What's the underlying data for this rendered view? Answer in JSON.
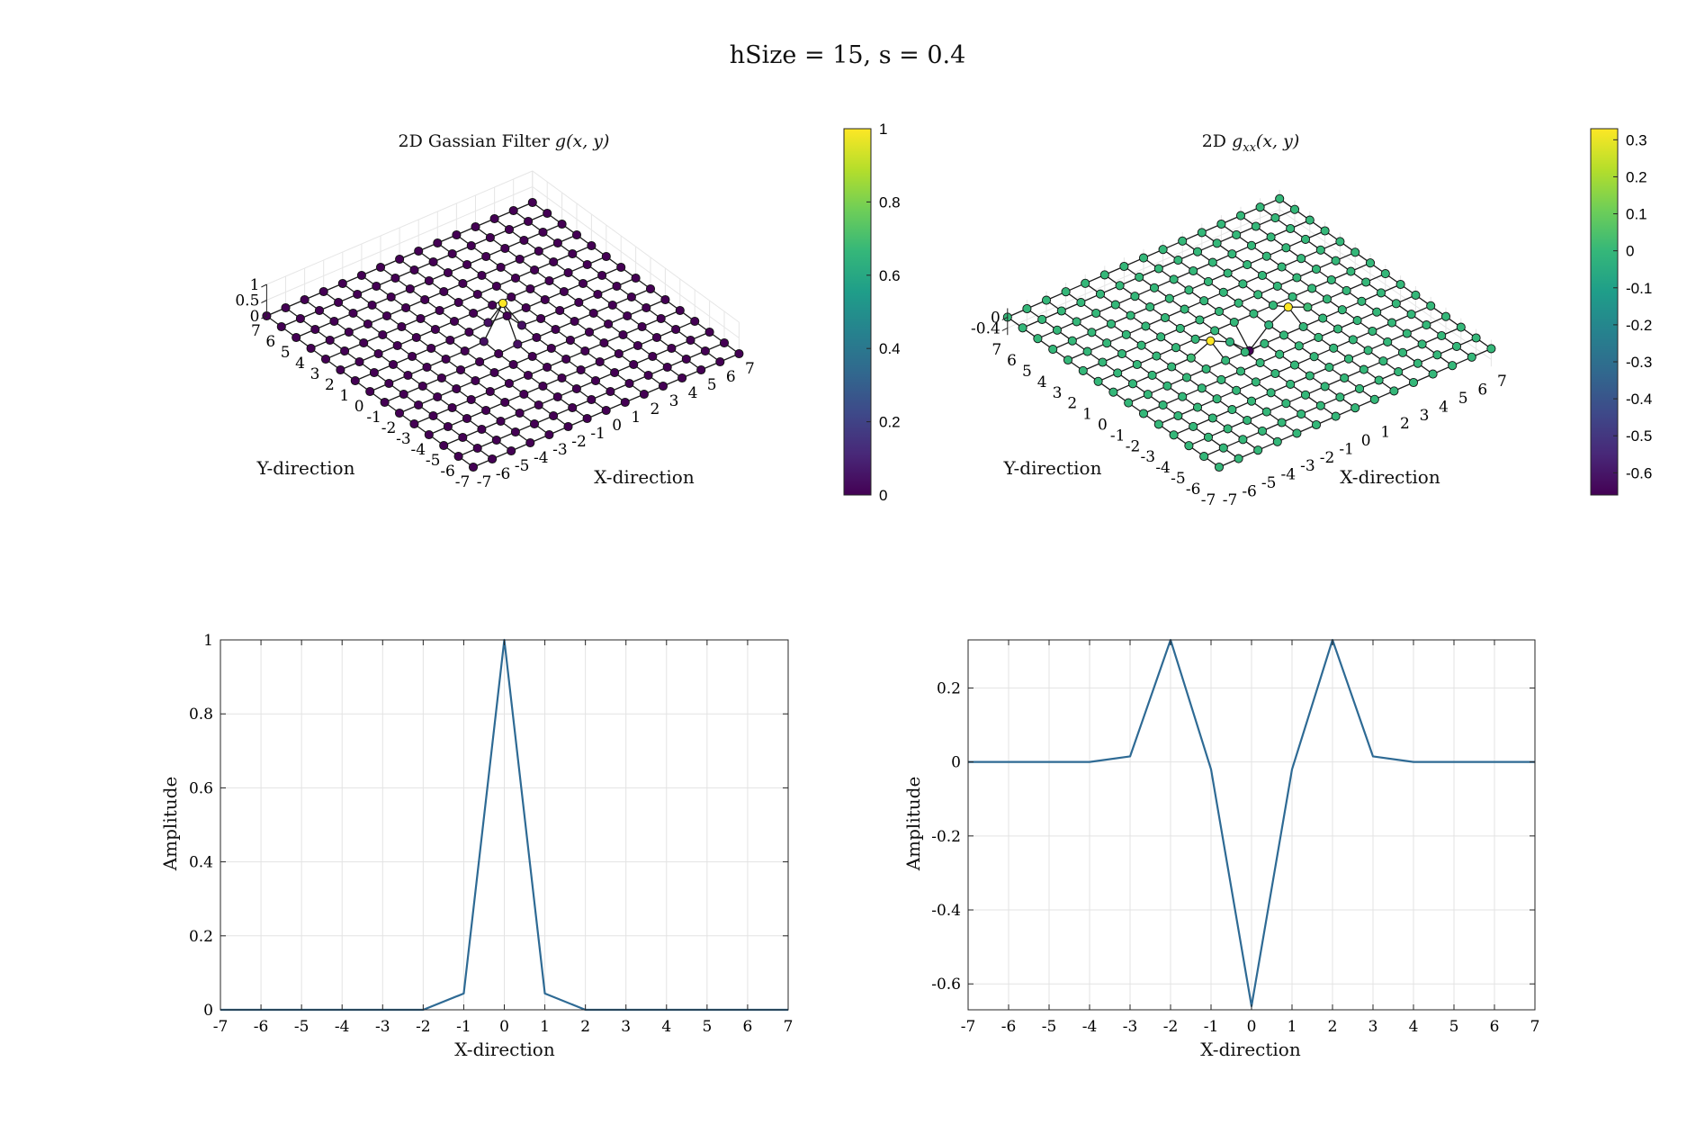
{
  "figure": {
    "suptitle": "hSize = 15, s = 0.4"
  },
  "chart_data": [
    {
      "type": "surface",
      "title": "2D Gassian Filter g(x,y)",
      "title_plain": "2D Gassian Filter ",
      "title_math": "g(x, y)",
      "xlabel": "X-direction",
      "ylabel": "Y-direction",
      "x": [
        -7,
        -6,
        -5,
        -4,
        -3,
        -2,
        -1,
        0,
        1,
        2,
        3,
        4,
        5,
        6,
        7
      ],
      "y": [
        -7,
        -6,
        -5,
        -4,
        -3,
        -2,
        -1,
        0,
        1,
        2,
        3,
        4,
        5,
        6,
        7
      ],
      "x_ticks": [
        "-7",
        "-6",
        "-5",
        "-4",
        "-3",
        "-2",
        "-1",
        "0",
        "1",
        "2",
        "3",
        "4",
        "5",
        "6",
        "7"
      ],
      "y_ticks": [
        "-7",
        "-6",
        "-5",
        "-4",
        "-3",
        "-2",
        "-1",
        "0",
        "1",
        "2",
        "3",
        "4",
        "5",
        "6",
        "7"
      ],
      "z_ticks": [
        "0",
        "0.5",
        "1"
      ],
      "zlim": [
        0,
        1
      ],
      "nonzero_z": [
        {
          "x": 0,
          "y": 0,
          "z": 1.0
        },
        {
          "x": 1,
          "y": 0,
          "z": 0.044
        },
        {
          "x": -1,
          "y": 0,
          "z": 0.044
        },
        {
          "x": 0,
          "y": 1,
          "z": 0.044
        },
        {
          "x": 0,
          "y": -1,
          "z": 0.044
        }
      ],
      "colorbar": {
        "ticks": [
          "0",
          "0.2",
          "0.4",
          "0.6",
          "0.8",
          "1"
        ],
        "min": 0,
        "max": 1
      }
    },
    {
      "type": "surface",
      "title": "2D g_xx(x,y)",
      "title_plain": "2D ",
      "title_math": "g",
      "title_sub": "xx",
      "title_args": "(x, y)",
      "xlabel": "X-direction",
      "ylabel": "Y-direction",
      "x": [
        -7,
        -6,
        -5,
        -4,
        -3,
        -2,
        -1,
        0,
        1,
        2,
        3,
        4,
        5,
        6,
        7
      ],
      "y": [
        -7,
        -6,
        -5,
        -4,
        -3,
        -2,
        -1,
        0,
        1,
        2,
        3,
        4,
        5,
        6,
        7
      ],
      "x_ticks": [
        "-7",
        "-6",
        "-5",
        "-4",
        "-3",
        "-2",
        "-1",
        "0",
        "1",
        "2",
        "3",
        "4",
        "5",
        "6",
        "7"
      ],
      "y_ticks": [
        "-7",
        "-6",
        "-5",
        "-4",
        "-3",
        "-2",
        "-1",
        "0",
        "1",
        "2",
        "3",
        "4",
        "5",
        "6",
        "7"
      ],
      "z_ticks": [
        "-0.4",
        "0"
      ],
      "zlim": [
        -0.66,
        0.33
      ],
      "nonzero_z": [
        {
          "x": 0,
          "y": 0,
          "z": -0.66
        },
        {
          "x": -2,
          "y": 0,
          "z": 0.33
        },
        {
          "x": 2,
          "y": 0,
          "z": 0.33
        },
        {
          "x": -1,
          "y": 0,
          "z": -0.02
        },
        {
          "x": 1,
          "y": 0,
          "z": -0.02
        },
        {
          "x": -3,
          "y": 0,
          "z": 0.015
        },
        {
          "x": 3,
          "y": 0,
          "z": 0.015
        }
      ],
      "colorbar": {
        "ticks": [
          "-0.6",
          "-0.5",
          "-0.4",
          "-0.3",
          "-0.2",
          "-0.1",
          "0",
          "0.1",
          "0.2",
          "0.3"
        ],
        "min": -0.66,
        "max": 0.33
      }
    },
    {
      "type": "line",
      "title": "",
      "xlabel": "X-direction",
      "ylabel": "Amplitude",
      "x": [
        -7,
        -6,
        -5,
        -4,
        -3,
        -2,
        -1,
        0,
        1,
        2,
        3,
        4,
        5,
        6,
        7
      ],
      "y": [
        0,
        0,
        0,
        0,
        0,
        0,
        0.044,
        1,
        0.044,
        0,
        0,
        0,
        0,
        0,
        0
      ],
      "xlim": [
        -7,
        7
      ],
      "ylim": [
        0,
        1
      ],
      "x_ticks": [
        "-7",
        "-6",
        "-5",
        "-4",
        "-3",
        "-2",
        "-1",
        "0",
        "1",
        "2",
        "3",
        "4",
        "5",
        "6",
        "7"
      ],
      "y_ticks": [
        "0",
        "0.2",
        "0.4",
        "0.6",
        "0.8",
        "1"
      ],
      "grid": true,
      "color": "#2e6a94"
    },
    {
      "type": "line",
      "title": "",
      "xlabel": "X-direction",
      "ylabel": "Amplitude",
      "x": [
        -7,
        -6,
        -5,
        -4,
        -3,
        -2,
        -1,
        0,
        1,
        2,
        3,
        4,
        5,
        6,
        7
      ],
      "y": [
        0,
        0,
        0,
        0,
        0.015,
        0.33,
        -0.02,
        -0.66,
        -0.02,
        0.33,
        0.015,
        0,
        0,
        0,
        0
      ],
      "xlim": [
        -7,
        7
      ],
      "ylim": [
        -0.67,
        0.33
      ],
      "x_ticks": [
        "-7",
        "-6",
        "-5",
        "-4",
        "-3",
        "-2",
        "-1",
        "0",
        "1",
        "2",
        "3",
        "4",
        "5",
        "6",
        "7"
      ],
      "y_ticks": [
        "-0.6",
        "-0.4",
        "-0.2",
        "0",
        "0.2"
      ],
      "grid": true,
      "color": "#2e6a94"
    }
  ],
  "colors": {
    "line": "#2e6a94",
    "grid": "#e3e3e3",
    "axis": "#262626",
    "viridis": [
      "#440154",
      "#482878",
      "#3e4989",
      "#31688e",
      "#26828e",
      "#1f9e89",
      "#35b779",
      "#6ece58",
      "#b5de2b",
      "#fde725"
    ]
  }
}
